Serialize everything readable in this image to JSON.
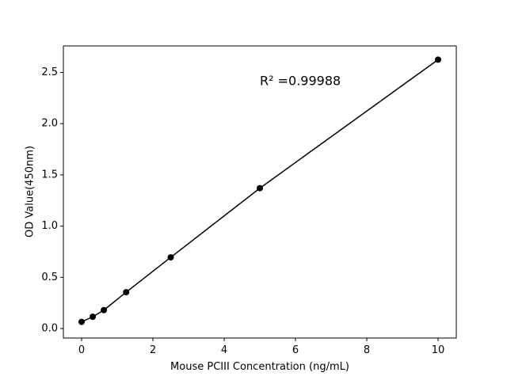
{
  "chart_data": {
    "type": "scatter",
    "x_label": "Mouse PCIII Concentration (ng/mL)",
    "y_label": "OD Value(450nm)",
    "annotation": "R² =0.99988",
    "x": [
      0,
      0.3125,
      0.625,
      1.25,
      2.5,
      5,
      10
    ],
    "values": [
      0.065,
      0.115,
      0.18,
      0.355,
      0.695,
      1.37,
      2.625
    ],
    "color": "#000000",
    "xlim": [
      -0.511,
      10.511
    ],
    "ylim": [
      -0.0927,
      2.759
    ],
    "xticks": [
      0,
      2,
      4,
      6,
      8,
      10
    ],
    "yticks": [
      {
        "value": 0,
        "label": "0.0"
      },
      0.5,
      {
        "value": 1,
        "label": "1.0"
      },
      1.5,
      {
        "value": 2,
        "label": "2.0"
      },
      2.5
    ],
    "grid": false
  }
}
